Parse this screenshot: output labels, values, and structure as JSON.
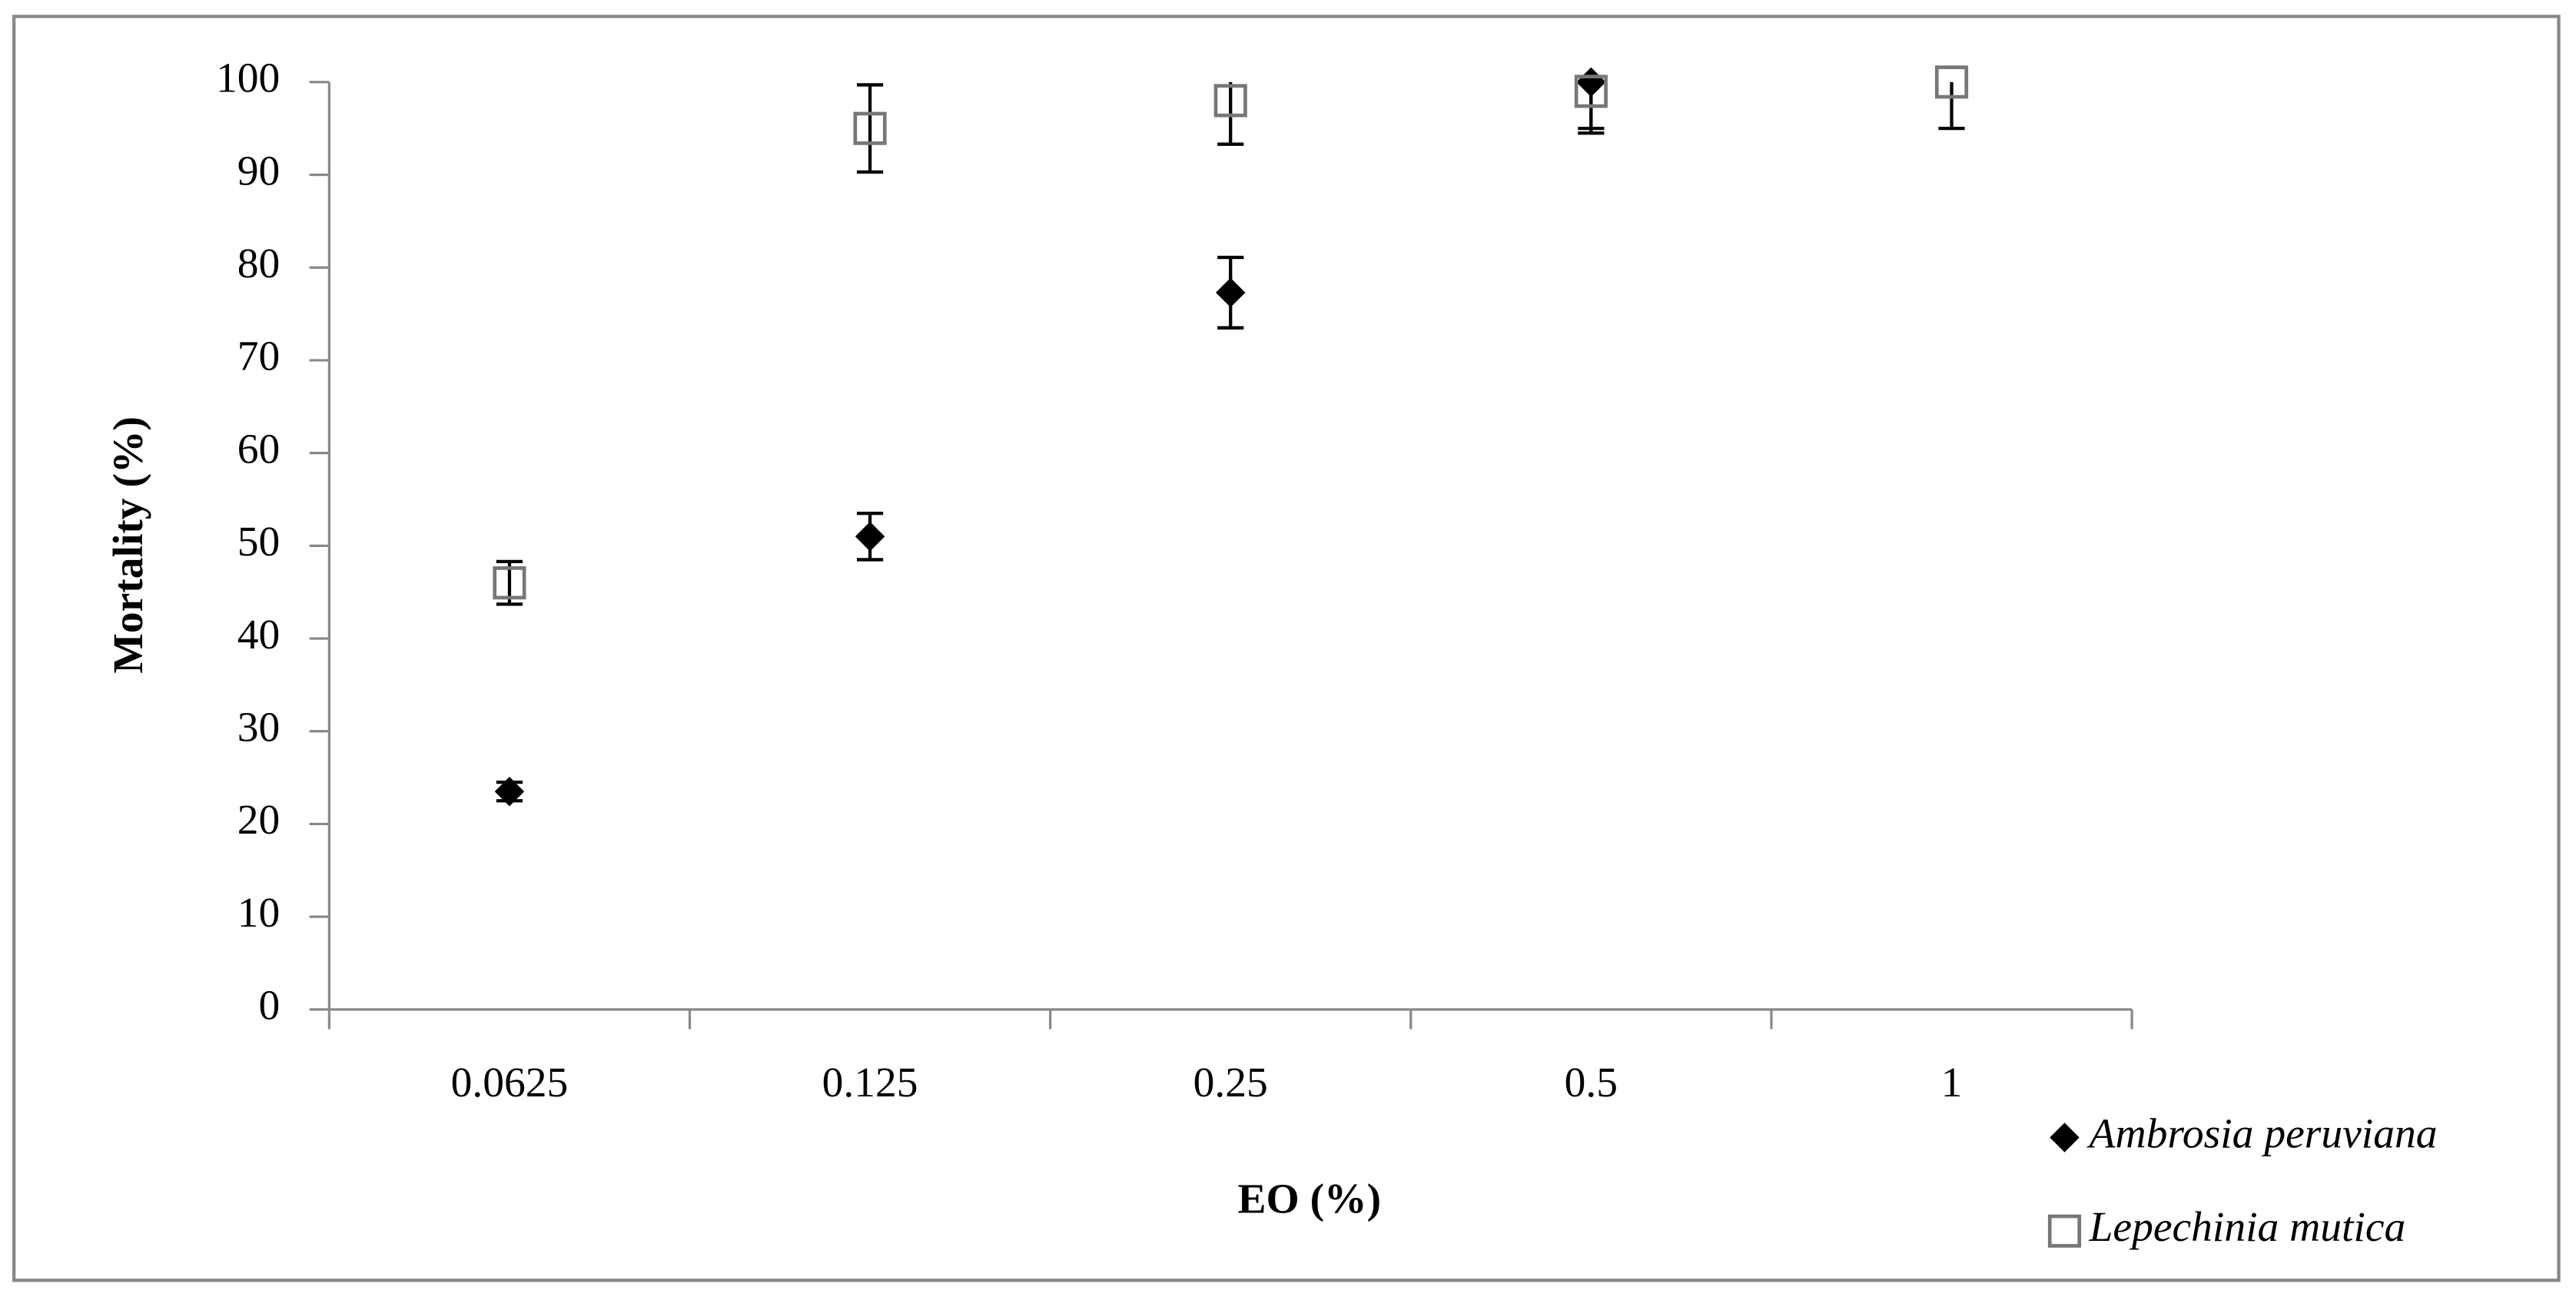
{
  "chart_data": {
    "type": "scatter",
    "x_label": "EO  (%)",
    "y_label": "Mortality (%)",
    "categories": [
      "0.0625",
      "0.125",
      "0.25",
      "0.5",
      "1"
    ],
    "series": [
      {
        "name": "Ambrosia peruviana",
        "color": "#000000",
        "marker": "diamond",
        "values": [
          23.5,
          51,
          77.3,
          100,
          null
        ],
        "errors": [
          1,
          2.5,
          3.8,
          5,
          null
        ]
      },
      {
        "name": "Lepechinia mutica",
        "color": "#777777",
        "marker": "square",
        "values": [
          46,
          95,
          98,
          99,
          100
        ],
        "errors": [
          2.3,
          4.7,
          4.7,
          4.5,
          5
        ]
      }
    ],
    "ylim": [
      0,
      100
    ],
    "yticks": [
      0,
      10,
      20,
      30,
      40,
      50,
      60,
      70,
      80,
      90,
      100
    ],
    "grid": false,
    "legend": "bottom-right"
  }
}
